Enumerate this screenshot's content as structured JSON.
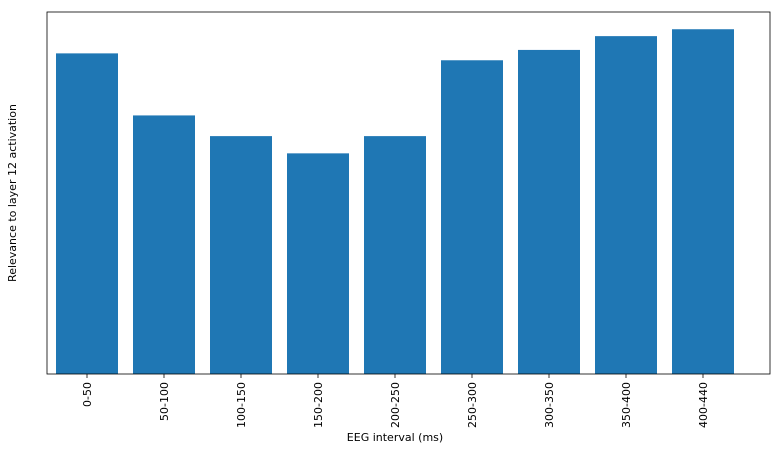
{
  "chart_data": {
    "type": "bar",
    "x_label": "EEG interval (ms)",
    "y_label": "Relevance to layer 12 activation",
    "categories": [
      "0-50",
      "50-100",
      "100-150",
      "150-200",
      "200-250",
      "250-300",
      "300-350",
      "350-400",
      "400-440"
    ],
    "values": [
      0.93,
      0.75,
      0.69,
      0.64,
      0.69,
      0.91,
      0.94,
      0.98,
      1.0
    ],
    "color": "#1f77b4",
    "ylim": [
      0,
      1.05
    ]
  }
}
